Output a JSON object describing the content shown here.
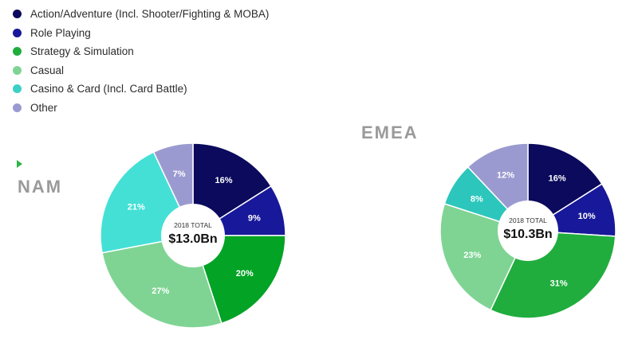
{
  "legend": [
    {
      "label": "Action/Adventure (Incl. Shooter/Fighting & MOBA)",
      "color": "#0b0a5c"
    },
    {
      "label": "Role Playing",
      "color": "#18189a"
    },
    {
      "label": "Strategy & Simulation",
      "color": "#20ad3e"
    },
    {
      "label": "Casual",
      "color": "#7fd494"
    },
    {
      "label": "Casino & Card (Incl. Card Battle)",
      "color": "#3dd0c5"
    },
    {
      "label": "Other",
      "color": "#9b9ad0"
    }
  ],
  "chart_data": [
    {
      "type": "pie",
      "title": "NAM",
      "center_caption": "2018 TOTAL",
      "center_value": "$13.0Bn",
      "categories": [
        "Action/Adventure (Incl. Shooter/Fighting & MOBA)",
        "Role Playing",
        "Strategy & Simulation",
        "Casual",
        "Casino & Card (Incl. Card Battle)",
        "Other"
      ],
      "values": [
        16,
        9,
        20,
        27,
        21,
        7
      ],
      "data_labels": [
        "16%",
        "9%",
        "20%",
        "27%",
        "21%",
        "7%"
      ],
      "colors": [
        "#0b0a5c",
        "#18189a",
        "#03a325",
        "#7fd494",
        "#44e0d6",
        "#9b9ad0"
      ]
    },
    {
      "type": "pie",
      "title": "EMEA",
      "center_caption": "2018 TOTAL",
      "center_value": "$10.3Bn",
      "categories": [
        "Action/Adventure (Incl. Shooter/Fighting & MOBA)",
        "Role Playing",
        "Strategy & Simulation",
        "Casual",
        "Casino & Card (Incl. Card Battle)",
        "Other"
      ],
      "values": [
        16,
        10,
        31,
        23,
        8,
        12
      ],
      "data_labels": [
        "16%",
        "10%",
        "31%",
        "23%",
        "8%",
        "12%"
      ],
      "colors": [
        "#0b0a5c",
        "#18189a",
        "#20ad3e",
        "#7fd494",
        "#2cc6bc",
        "#9b9ad0"
      ]
    }
  ]
}
